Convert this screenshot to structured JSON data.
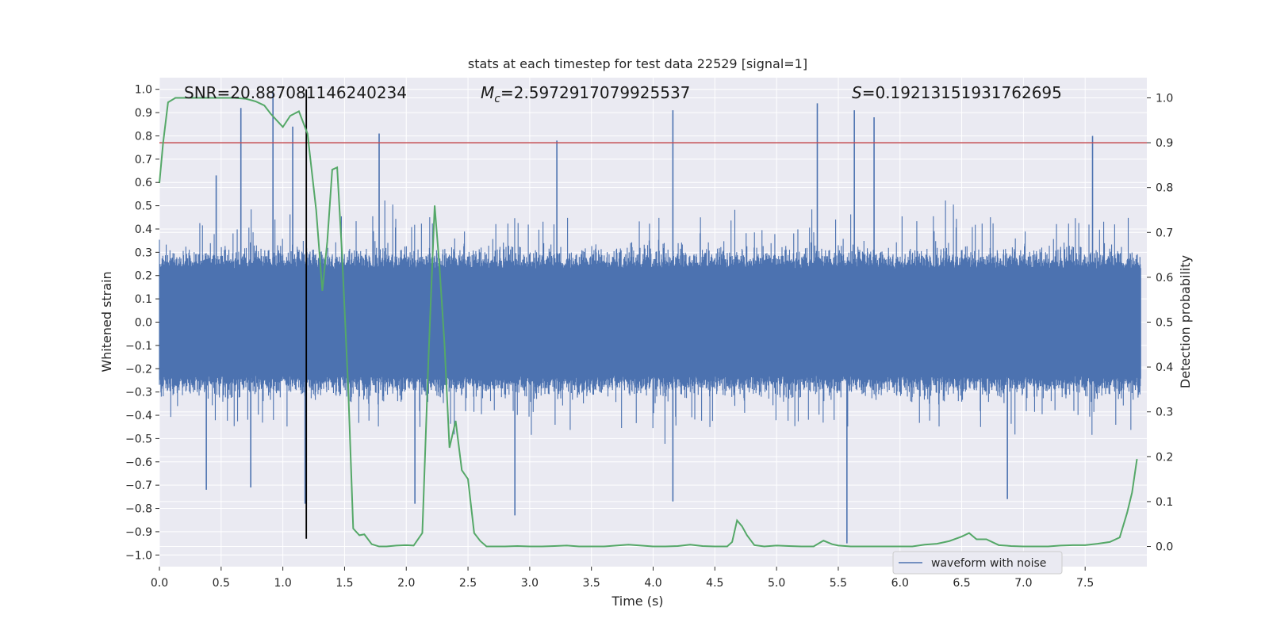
{
  "chart_data": {
    "type": "line",
    "title": "stats at each timestep for test data 22529 [signal=1]",
    "xlabel": "Time (s)",
    "ylabel_left": "Whitened strain",
    "ylabel_right": "Detection probability",
    "xlim": [
      0.0,
      8.0
    ],
    "ylim_left": [
      -1.05,
      1.05
    ],
    "ylim_right": [
      -0.045,
      1.045
    ],
    "x_ticks": [
      "0.0",
      "0.5",
      "1.0",
      "1.5",
      "2.0",
      "2.5",
      "3.0",
      "3.5",
      "4.0",
      "4.5",
      "5.0",
      "5.5",
      "6.0",
      "6.5",
      "7.0",
      "7.5"
    ],
    "y_ticks_left": [
      "1.0",
      "0.9",
      "0.8",
      "0.7",
      "0.6",
      "0.5",
      "0.4",
      "0.3",
      "0.2",
      "0.1",
      "0.0",
      "−0.1",
      "−0.2",
      "−0.3",
      "−0.4",
      "−0.5",
      "−0.6",
      "−0.7",
      "−0.8",
      "−0.9",
      "−1.0"
    ],
    "y_ticks_right": [
      "1.0",
      "0.9",
      "0.8",
      "0.7",
      "0.6",
      "0.5",
      "0.4",
      "0.3",
      "0.2",
      "0.1",
      "0.0"
    ],
    "grid": true,
    "legend": {
      "position": "lower-right",
      "entries": [
        "waveform with noise"
      ]
    },
    "annotations": {
      "snr": "SNR=20.887081146240234",
      "mc_prefix": "M",
      "mc_sub": "c",
      "mc_value": "=2.5972917079925537",
      "s_prefix": "S",
      "s_value": "=0.19213151931762695"
    },
    "threshold_line": {
      "axis": "right",
      "y": 0.9,
      "color": "#c44e52"
    },
    "marker_line": {
      "x": 1.19,
      "y_range": [
        -0.93,
        1.0
      ],
      "color": "#000000"
    },
    "colors": {
      "waveform": "#4c72b0",
      "probability": "#55a868",
      "background": "#eaeaf2",
      "grid": "#ffffff"
    },
    "waveform_series": {
      "name": "waveform with noise",
      "note": "dense whitened-strain samples over 0.0–8.0 s; typical envelope about ±0.2–0.6 with spikes",
      "spikes": [
        {
          "x": 0.46,
          "y": 0.63
        },
        {
          "x": 0.66,
          "y": 0.92
        },
        {
          "x": 0.92,
          "y": 0.99
        },
        {
          "x": 1.08,
          "y": 0.84
        },
        {
          "x": 1.78,
          "y": 0.81
        },
        {
          "x": 3.22,
          "y": 0.78
        },
        {
          "x": 4.16,
          "y": 0.91
        },
        {
          "x": 5.33,
          "y": 0.94
        },
        {
          "x": 5.63,
          "y": 0.91
        },
        {
          "x": 5.79,
          "y": 0.88
        },
        {
          "x": 7.56,
          "y": 0.8
        },
        {
          "x": 0.38,
          "y": -0.72
        },
        {
          "x": 0.74,
          "y": -0.71
        },
        {
          "x": 1.18,
          "y": -0.78
        },
        {
          "x": 2.07,
          "y": -0.78
        },
        {
          "x": 2.88,
          "y": -0.83
        },
        {
          "x": 4.16,
          "y": -0.77
        },
        {
          "x": 5.57,
          "y": -0.95
        },
        {
          "x": 6.87,
          "y": -0.76
        }
      ]
    },
    "probability_series": {
      "name": "",
      "x": [
        0.0,
        0.03,
        0.07,
        0.13,
        0.2,
        0.3,
        0.4,
        0.5,
        0.6,
        0.7,
        0.78,
        0.85,
        0.9,
        0.95,
        1.0,
        1.06,
        1.13,
        1.2,
        1.27,
        1.32,
        1.36,
        1.4,
        1.44,
        1.48,
        1.53,
        1.57,
        1.62,
        1.66,
        1.72,
        1.78,
        1.84,
        1.92,
        2.0,
        2.06,
        2.13,
        2.18,
        2.23,
        2.27,
        2.31,
        2.35,
        2.4,
        2.45,
        2.5,
        2.55,
        2.6,
        2.65,
        2.7,
        2.8,
        2.9,
        3.0,
        3.1,
        3.2,
        3.3,
        3.4,
        3.5,
        3.6,
        3.7,
        3.8,
        3.9,
        4.0,
        4.1,
        4.2,
        4.3,
        4.4,
        4.5,
        4.6,
        4.64,
        4.68,
        4.72,
        4.76,
        4.82,
        4.9,
        5.0,
        5.1,
        5.2,
        5.3,
        5.38,
        5.45,
        5.5,
        5.6,
        5.7,
        5.8,
        5.9,
        6.0,
        6.1,
        6.2,
        6.3,
        6.4,
        6.5,
        6.56,
        6.62,
        6.7,
        6.8,
        6.9,
        7.0,
        7.1,
        7.2,
        7.3,
        7.4,
        7.5,
        7.6,
        7.7,
        7.78,
        7.84,
        7.88,
        7.92
      ],
      "values": [
        0.81,
        0.9,
        0.99,
        1.0,
        1.0,
        1.0,
        1.0,
        1.0,
        1.0,
        0.998,
        0.992,
        0.983,
        0.965,
        0.95,
        0.935,
        0.96,
        0.97,
        0.92,
        0.75,
        0.57,
        0.68,
        0.84,
        0.845,
        0.65,
        0.35,
        0.04,
        0.025,
        0.027,
        0.005,
        0.0,
        0.0,
        0.002,
        0.003,
        0.002,
        0.03,
        0.42,
        0.76,
        0.62,
        0.45,
        0.22,
        0.28,
        0.17,
        0.15,
        0.03,
        0.012,
        0.0,
        0.0,
        0.0,
        0.001,
        0.0,
        0.0,
        0.001,
        0.002,
        0.0,
        0.0,
        0.0,
        0.002,
        0.004,
        0.002,
        0.0,
        0.0,
        0.001,
        0.004,
        0.001,
        0.0,
        0.0,
        0.01,
        0.058,
        0.045,
        0.025,
        0.003,
        0.0,
        0.002,
        0.001,
        0.0,
        0.0,
        0.013,
        0.005,
        0.002,
        0.0,
        0.0,
        0.0,
        0.0,
        0.0,
        0.0,
        0.004,
        0.006,
        0.012,
        0.022,
        0.03,
        0.016,
        0.016,
        0.003,
        0.001,
        0.0,
        0.0,
        0.0,
        0.002,
        0.003,
        0.003,
        0.006,
        0.01,
        0.02,
        0.075,
        0.12,
        0.195
      ]
    }
  }
}
